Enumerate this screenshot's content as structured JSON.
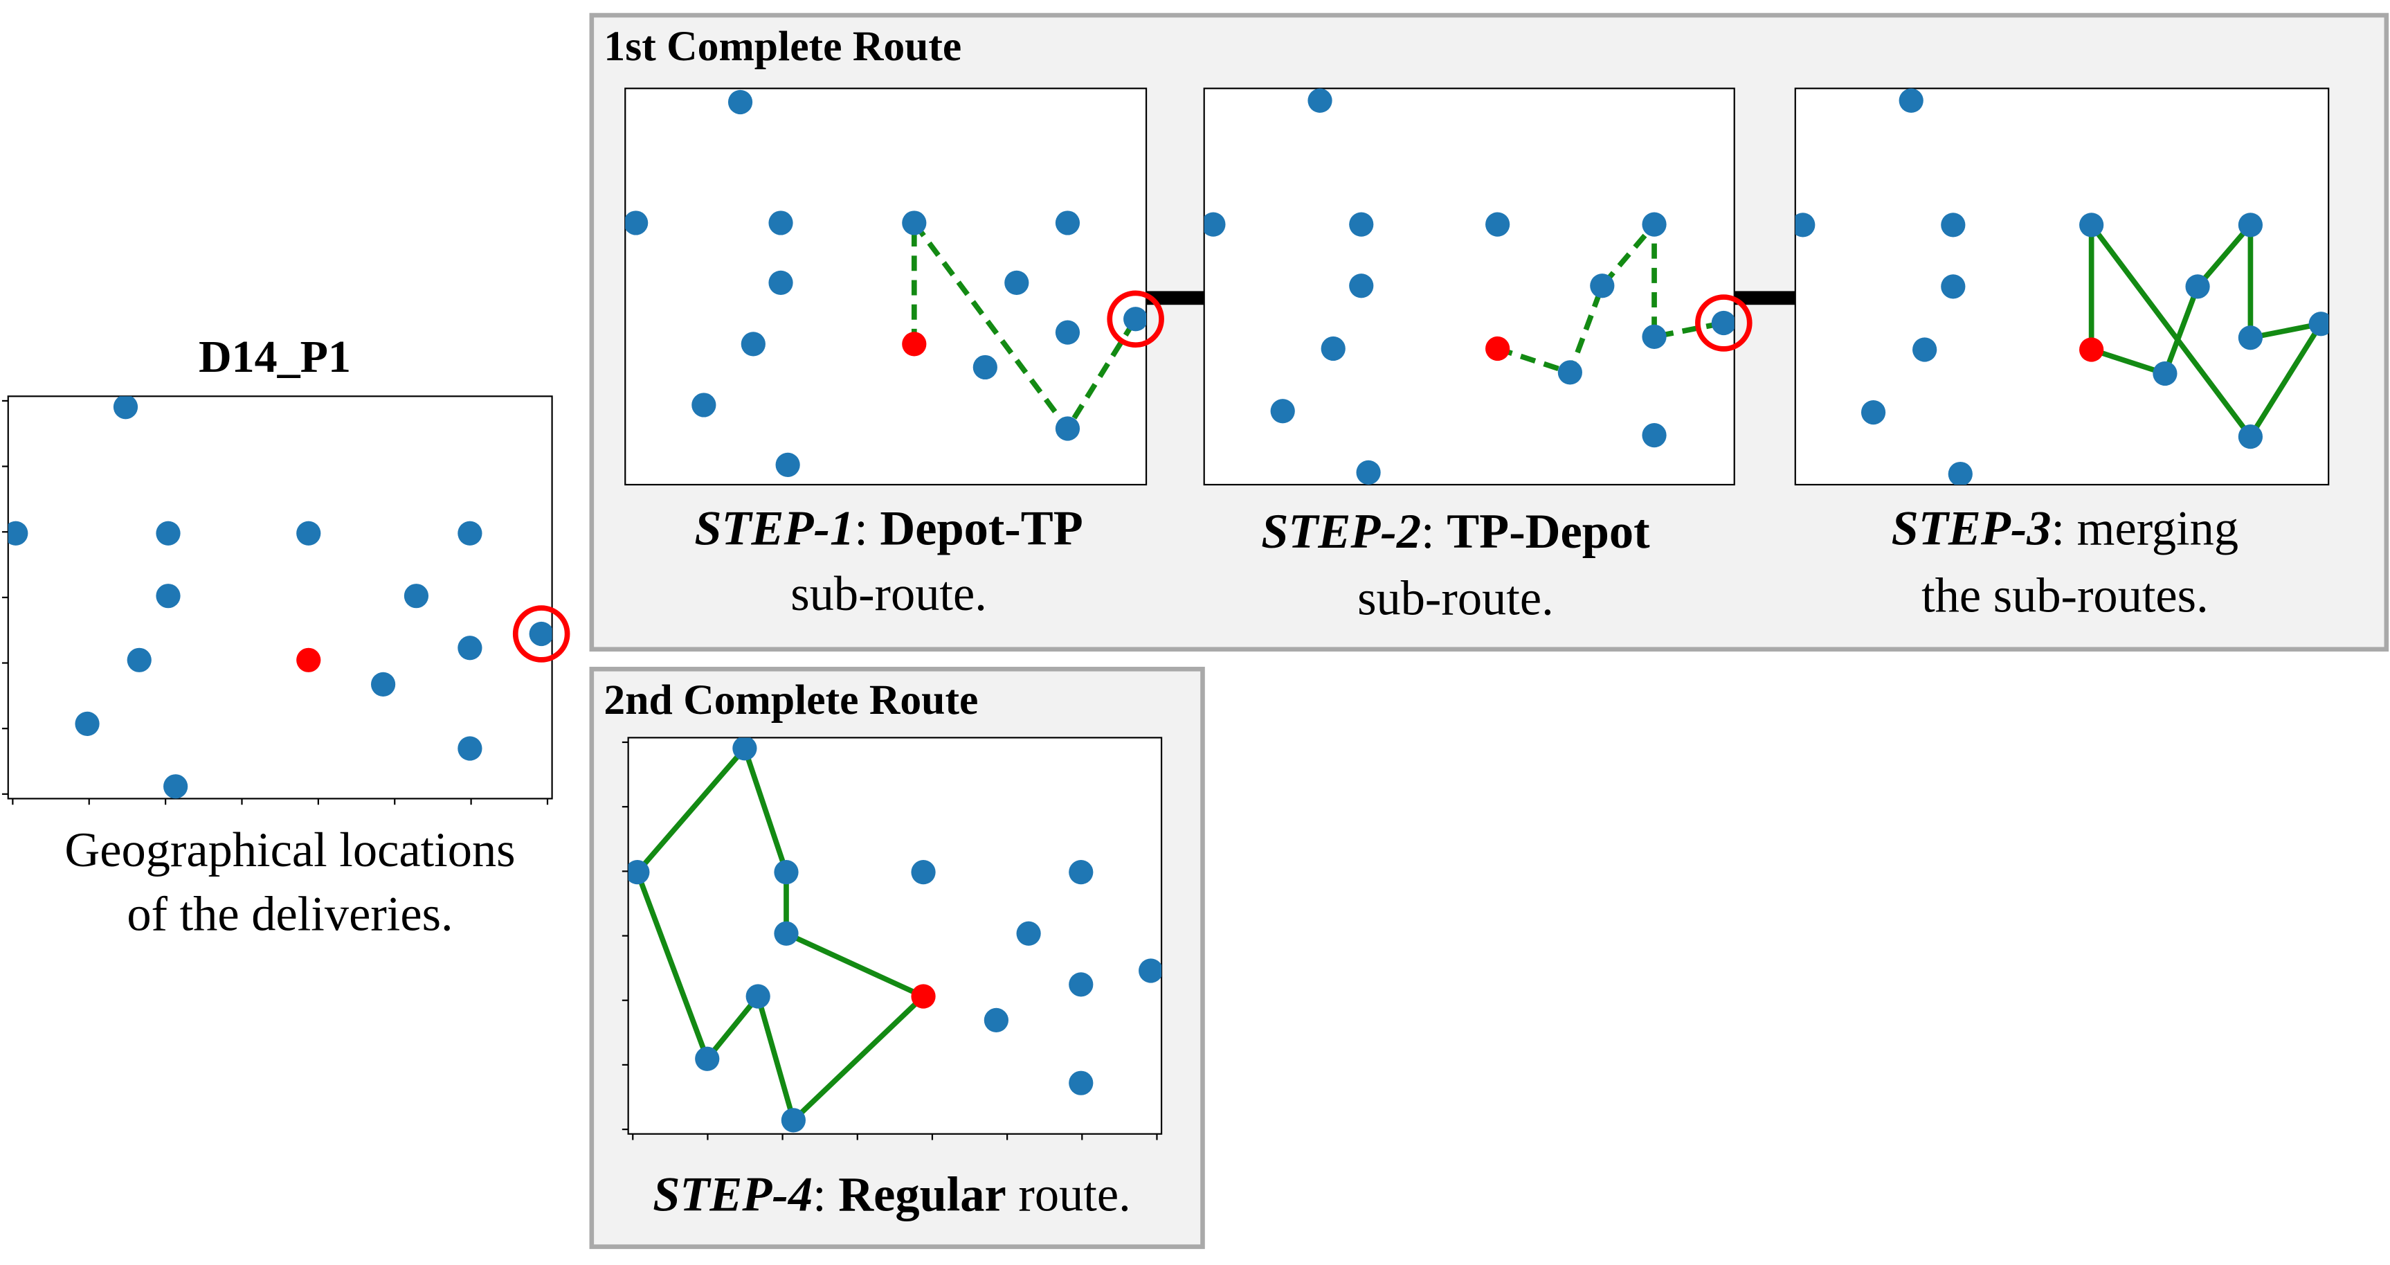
{
  "left_panel": {
    "title": "D14_P1",
    "caption": [
      "Geographical locations",
      "of the deliveries."
    ]
  },
  "groups": [
    {
      "title": "1st Complete Route",
      "steps": [
        {
          "caption": [
            [
              {
                "text": "STEP-1",
                "style": "bi"
              },
              {
                "text": ": ",
                "style": "r"
              },
              {
                "text": "Depot-TP",
                "style": "b"
              }
            ],
            [
              {
                "text": "sub-route.",
                "style": "r"
              }
            ]
          ]
        },
        {
          "caption": [
            [
              {
                "text": "STEP-2",
                "style": "bi"
              },
              {
                "text": ": ",
                "style": "r"
              },
              {
                "text": "TP-Depot",
                "style": "b"
              }
            ],
            [
              {
                "text": "sub-route.",
                "style": "r"
              }
            ]
          ]
        },
        {
          "caption": [
            [
              {
                "text": "STEP-3",
                "style": "bi"
              },
              {
                "text": ": merging",
                "style": "r"
              }
            ],
            [
              {
                "text": "the sub-routes.",
                "style": "r"
              }
            ]
          ]
        }
      ]
    },
    {
      "title": "2nd Complete Route",
      "steps": [
        {
          "caption": [
            [
              {
                "text": "STEP-4",
                "style": "bi"
              },
              {
                "text": ": ",
                "style": "r"
              },
              {
                "text": "Regular",
                "style": "b"
              },
              {
                "text": " route.",
                "style": "r"
              }
            ]
          ]
        }
      ]
    }
  ]
}
